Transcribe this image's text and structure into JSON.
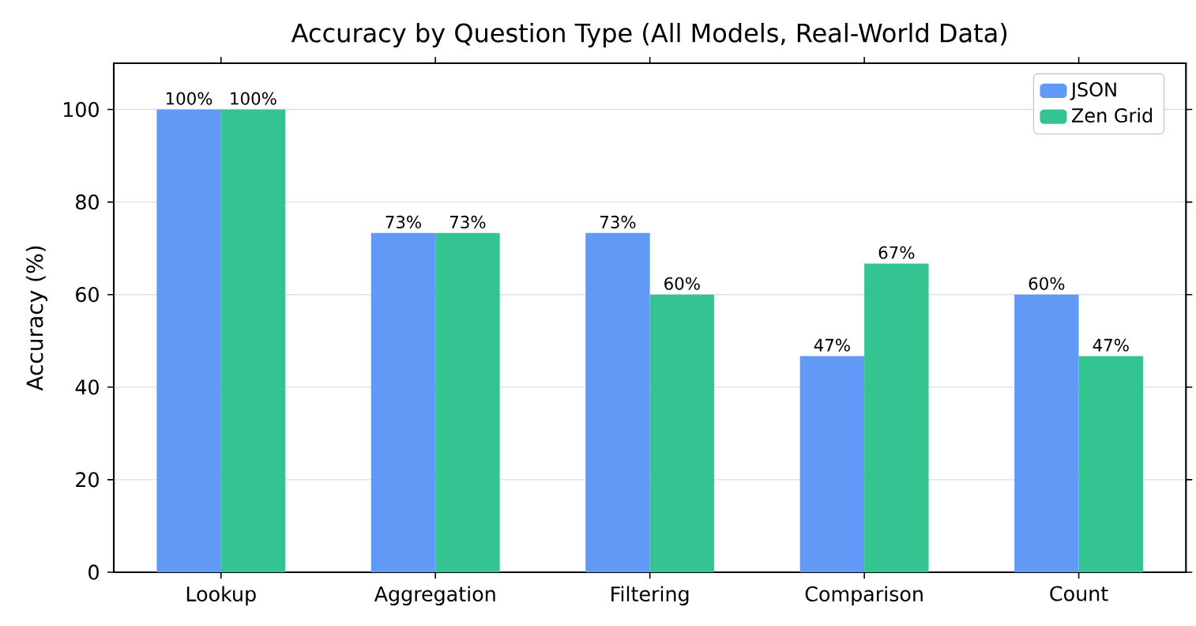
{
  "chart_data": {
    "type": "bar",
    "title": "Accuracy by Question Type (All Models, Real-World Data)",
    "ylabel": "Accuracy (%)",
    "categories": [
      "Lookup",
      "Aggregation",
      "Filtering",
      "Comparison",
      "Count"
    ],
    "series": [
      {
        "name": "JSON",
        "color": "#6199f7",
        "values": [
          100,
          73.3,
          73.3,
          46.7,
          60
        ],
        "value_labels": [
          "100%",
          "73%",
          "73%",
          "47%",
          "60%"
        ]
      },
      {
        "name": "Zen Grid",
        "color": "#34c492",
        "values": [
          100,
          73.3,
          60,
          66.7,
          46.7
        ],
        "value_labels": [
          "100%",
          "73%",
          "60%",
          "67%",
          "47%"
        ]
      }
    ],
    "ylim": [
      0,
      110
    ],
    "yticks": [
      0,
      20,
      40,
      60,
      80,
      100
    ],
    "grid": "y",
    "legend": "top right"
  }
}
